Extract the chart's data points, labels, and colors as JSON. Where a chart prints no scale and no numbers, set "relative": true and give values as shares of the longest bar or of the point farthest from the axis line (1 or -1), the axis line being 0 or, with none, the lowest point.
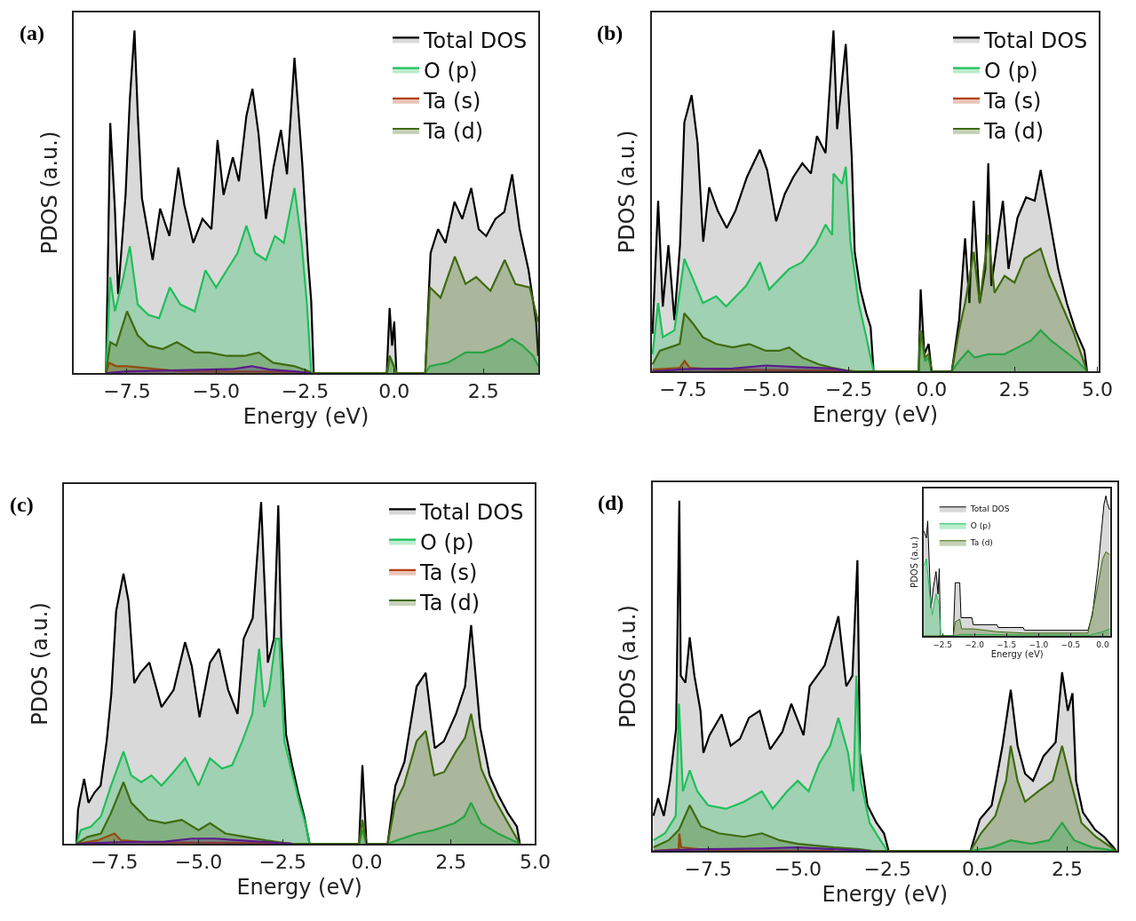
{
  "chart_data": [
    {
      "type": "area",
      "title": "(a)",
      "xlabel": "Energy (eV)",
      "ylabel": "PDOS (a.u.)",
      "relative": true,
      "tick_labels": "x",
      "legend": "top right",
      "xlim": [
        -9.0,
        4.05
      ],
      "xticks": [
        {
          "value": -7.5,
          "label": "−7.5"
        },
        {
          "value": -5.0,
          "label": "−5.0"
        },
        {
          "value": -2.5,
          "label": "−2.5"
        },
        {
          "value": 0.0,
          "label": "0.0"
        },
        {
          "value": 2.5,
          "label": "2.5"
        }
      ],
      "series": [
        {
          "name": "Total DOS",
          "color": "#000000",
          "x": [
            -8.09,
            -7.97,
            -7.84,
            -7.75,
            -7.54,
            -7.42,
            -7.29,
            -7.2,
            -7.08,
            -6.78,
            -6.57,
            -6.31,
            -6.06,
            -5.89,
            -5.64,
            -5.38,
            -5.13,
            -4.96,
            -4.79,
            -4.53,
            -4.36,
            -4.15,
            -3.98,
            -3.81,
            -3.6,
            -3.39,
            -3.18,
            -3.01,
            -2.8,
            -2.58,
            -2.42,
            -2.33,
            -2.26,
            -0.21,
            -0.13,
            -0.06,
            0.0,
            0.06,
            0.87,
            1.02,
            1.23,
            1.44,
            1.69,
            1.91,
            2.16,
            2.37,
            2.58,
            2.84,
            3.09,
            3.31,
            3.52,
            3.77,
            3.98,
            4.04
          ],
          "values": [
            0,
            0.73,
            0.48,
            0.23,
            0.52,
            0.8,
            1.0,
            0.76,
            0.51,
            0.33,
            0.48,
            0.4,
            0.6,
            0.49,
            0.38,
            0.45,
            0.42,
            0.68,
            0.52,
            0.63,
            0.56,
            0.75,
            0.83,
            0.7,
            0.45,
            0.6,
            0.71,
            0.58,
            0.92,
            0.61,
            0.33,
            0.21,
            0,
            0,
            0.19,
            0.08,
            0.15,
            0,
            0,
            0.35,
            0.42,
            0.38,
            0.5,
            0.45,
            0.54,
            0.42,
            0.4,
            0.45,
            0.47,
            0.58,
            0.42,
            0.3,
            0.15,
            0.05
          ]
        },
        {
          "name": "O (p)",
          "color": "#1fbf5a",
          "x": [
            -8.09,
            -7.97,
            -7.84,
            -7.6,
            -7.42,
            -7.2,
            -6.9,
            -6.6,
            -6.3,
            -6.0,
            -5.6,
            -5.3,
            -5.0,
            -4.7,
            -4.4,
            -4.15,
            -3.9,
            -3.6,
            -3.35,
            -3.1,
            -2.8,
            -2.6,
            -2.45,
            -2.33,
            -0.2,
            -0.13,
            0.0,
            0.06,
            0.87,
            1.0,
            1.5,
            2.0,
            2.5,
            3.0,
            3.3,
            3.6,
            3.9,
            4.04
          ],
          "values": [
            0,
            0.28,
            0.18,
            0.28,
            0.37,
            0.2,
            0.17,
            0.16,
            0.25,
            0.2,
            0.18,
            0.3,
            0.25,
            0.3,
            0.35,
            0.43,
            0.35,
            0.33,
            0.4,
            0.38,
            0.54,
            0.38,
            0.2,
            0,
            0,
            0.05,
            0.02,
            0,
            0,
            0.02,
            0.03,
            0.06,
            0.06,
            0.08,
            0.1,
            0.08,
            0.05,
            0.02
          ]
        },
        {
          "name": "Ta (s)",
          "color": "#b5400f",
          "x": [
            -8.09,
            -8.0,
            -7.8,
            -7.5,
            -6.0,
            -4.0,
            -2.5,
            -2.33
          ],
          "values": [
            0,
            0.03,
            0.02,
            0.02,
            0.005,
            0.004,
            0.003,
            0
          ]
        },
        {
          "name": "Ta (d)",
          "color": "#3f6b0f",
          "x": [
            -8.09,
            -7.97,
            -7.8,
            -7.5,
            -7.2,
            -6.9,
            -6.5,
            -6.1,
            -5.6,
            -5.2,
            -4.7,
            -4.2,
            -3.8,
            -3.4,
            -2.8,
            -2.4,
            -2.33,
            -0.2,
            -0.13,
            0.06,
            0.87,
            1.0,
            1.3,
            1.7,
            2.0,
            2.3,
            2.7,
            3.1,
            3.4,
            3.8,
            4.04
          ],
          "values": [
            0,
            0.09,
            0.08,
            0.18,
            0.11,
            0.08,
            0.07,
            0.09,
            0.06,
            0.06,
            0.05,
            0.05,
            0.06,
            0.03,
            0.02,
            0.005,
            0,
            0,
            0.05,
            0,
            0,
            0.25,
            0.22,
            0.34,
            0.26,
            0.28,
            0.24,
            0.33,
            0.26,
            0.25,
            0.15
          ]
        },
        {
          "color": "#5a1a8a",
          "x": [
            -8.09,
            -7.5,
            -6.0,
            -4.5,
            -4.0,
            -3.5,
            -2.8,
            -2.33
          ],
          "values": [
            0,
            0.005,
            0.008,
            0.012,
            0.02,
            0.01,
            0.005,
            0
          ]
        }
      ]
    },
    {
      "type": "area",
      "title": "(b)",
      "xlabel": "Energy (eV)",
      "ylabel": "PDOS (a.u.)",
      "relative": true,
      "tick_labels": "x",
      "legend": "top right",
      "xlim": [
        -8.45,
        5.05
      ],
      "xticks": [
        {
          "value": -7.5,
          "label": "−7.5"
        },
        {
          "value": -5.0,
          "label": "−5.0"
        },
        {
          "value": -2.5,
          "label": "−2.5"
        },
        {
          "value": 0.0,
          "label": "0.0"
        },
        {
          "value": 2.5,
          "label": "2.5"
        },
        {
          "value": 5.0,
          "label": "5.0"
        }
      ],
      "series": [
        {
          "name": "Total DOS",
          "color": "#000000",
          "x": [
            -8.42,
            -8.25,
            -8.11,
            -7.94,
            -7.76,
            -7.59,
            -7.46,
            -7.24,
            -7.06,
            -6.89,
            -6.71,
            -6.45,
            -6.18,
            -5.92,
            -5.57,
            -5.18,
            -4.96,
            -4.69,
            -4.43,
            -4.17,
            -3.9,
            -3.64,
            -3.46,
            -3.2,
            -2.96,
            -2.85,
            -2.59,
            -2.41,
            -2.32,
            -2.15,
            -1.97,
            -1.84,
            -1.75,
            -0.39,
            -0.33,
            -0.22,
            -0.09,
            0.0,
            0.61,
            0.83,
            1.01,
            1.14,
            1.27,
            1.45,
            1.62,
            1.71,
            1.8,
            2.15,
            2.32,
            2.59,
            2.85,
            3.11,
            3.29,
            3.55,
            3.82,
            4.08,
            4.34,
            4.61,
            4.69
          ],
          "values": [
            0.11,
            0.5,
            0.19,
            0.37,
            0.15,
            0.37,
            0.73,
            0.81,
            0.67,
            0.38,
            0.54,
            0.47,
            0.42,
            0.47,
            0.57,
            0.65,
            0.59,
            0.44,
            0.52,
            0.57,
            0.61,
            0.58,
            0.69,
            0.64,
            1.0,
            0.71,
            0.96,
            0.63,
            0.35,
            0.24,
            0.17,
            0.13,
            0,
            0,
            0.24,
            0.05,
            0.08,
            0,
            0,
            0.15,
            0.39,
            0.2,
            0.5,
            0.2,
            0.3,
            0.61,
            0.25,
            0.5,
            0.3,
            0.45,
            0.51,
            0.5,
            0.59,
            0.45,
            0.3,
            0.2,
            0.12,
            0.06,
            0
          ]
        },
        {
          "name": "O (p)",
          "color": "#1fbf5a",
          "x": [
            -8.42,
            -8.25,
            -8.11,
            -7.76,
            -7.46,
            -7.24,
            -6.9,
            -6.5,
            -6.2,
            -5.9,
            -5.6,
            -5.18,
            -4.9,
            -4.6,
            -4.3,
            -3.9,
            -3.5,
            -3.2,
            -3.0,
            -2.96,
            -2.7,
            -2.59,
            -2.45,
            -2.2,
            -1.97,
            -1.84,
            -1.75,
            -0.39,
            -0.33,
            -0.2,
            -0.09,
            0.0,
            0.61,
            0.83,
            1.1,
            1.3,
            1.7,
            2.2,
            2.6,
            3.0,
            3.29,
            3.6,
            4.0,
            4.4,
            4.69
          ],
          "values": [
            0.05,
            0.2,
            0.1,
            0.12,
            0.33,
            0.28,
            0.2,
            0.22,
            0.19,
            0.22,
            0.25,
            0.32,
            0.24,
            0.27,
            0.3,
            0.32,
            0.37,
            0.43,
            0.4,
            0.58,
            0.55,
            0.6,
            0.38,
            0.2,
            0.1,
            0.04,
            0,
            0,
            0.12,
            0.03,
            0.04,
            0,
            0,
            0.03,
            0.06,
            0.04,
            0.05,
            0.05,
            0.07,
            0.09,
            0.12,
            0.09,
            0.06,
            0.03,
            0
          ]
        },
        {
          "name": "Ta (s)",
          "color": "#b5400f",
          "x": [
            -8.42,
            -7.6,
            -7.45,
            -7.3,
            -6.5,
            -4.0,
            -2.5,
            -2.3
          ],
          "values": [
            0.005,
            0.01,
            0.03,
            0.01,
            0.005,
            0.003,
            0.002,
            0
          ]
        },
        {
          "name": "Ta (d)",
          "color": "#3f6b0f",
          "x": [
            -8.42,
            -8.2,
            -7.9,
            -7.6,
            -7.46,
            -7.2,
            -6.9,
            -6.5,
            -6.0,
            -5.5,
            -5.0,
            -4.6,
            -4.3,
            -3.9,
            -3.4,
            -3.0,
            -2.6,
            -2.4,
            -0.39,
            -0.33,
            -0.2,
            -0.09,
            0.0,
            0.61,
            0.83,
            1.01,
            1.27,
            1.45,
            1.71,
            1.9,
            2.2,
            2.5,
            2.8,
            3.29,
            3.55,
            3.9,
            4.3,
            4.69
          ],
          "values": [
            0.02,
            0.06,
            0.07,
            0.08,
            0.17,
            0.14,
            0.1,
            0.08,
            0.07,
            0.08,
            0.06,
            0.06,
            0.07,
            0.04,
            0.02,
            0.01,
            0.003,
            0,
            0,
            0.12,
            0.04,
            0.05,
            0,
            0,
            0.12,
            0.2,
            0.35,
            0.2,
            0.4,
            0.23,
            0.28,
            0.26,
            0.33,
            0.36,
            0.28,
            0.2,
            0.11,
            0
          ]
        },
        {
          "color": "#5a1a8a",
          "x": [
            -8.42,
            -7.5,
            -6.0,
            -5.0,
            -4.0,
            -3.0,
            -2.5
          ],
          "values": [
            0,
            0.006,
            0.008,
            0.017,
            0.012,
            0.008,
            0
          ]
        }
      ]
    },
    {
      "type": "area",
      "title": "(c)",
      "xlabel": "Energy (eV)",
      "ylabel": "PDOS (a.u.)",
      "relative": true,
      "tick_labels": "x",
      "legend": "top right",
      "xlim": [
        -9.0,
        5.0
      ],
      "xticks": [
        {
          "value": -7.5,
          "label": "−7.5"
        },
        {
          "value": -5.0,
          "label": "−5.0"
        },
        {
          "value": -2.5,
          "label": "−2.5"
        },
        {
          "value": 0.0,
          "label": "0.0"
        },
        {
          "value": 2.5,
          "label": "2.5"
        },
        {
          "value": 5.0,
          "label": "5.0"
        }
      ],
      "series": [
        {
          "name": "Total DOS",
          "color": "#000000",
          "x": [
            -8.63,
            -8.58,
            -8.4,
            -8.27,
            -8.09,
            -7.91,
            -7.73,
            -7.59,
            -7.45,
            -7.23,
            -7.08,
            -6.91,
            -6.73,
            -6.46,
            -6.1,
            -5.74,
            -5.4,
            -5.2,
            -4.97,
            -4.66,
            -4.39,
            -4.12,
            -3.84,
            -3.66,
            -3.39,
            -3.14,
            -2.94,
            -2.76,
            -2.63,
            -2.54,
            -2.4,
            -2.22,
            -2.04,
            -1.86,
            -1.7,
            -0.23,
            -0.13,
            -0.01,
            0.62,
            0.85,
            1.12,
            1.48,
            1.75,
            2.02,
            2.29,
            2.65,
            2.92,
            3.1,
            3.37,
            3.65,
            3.92,
            4.19,
            4.46,
            4.55
          ],
          "values": [
            0,
            0.1,
            0.19,
            0.12,
            0.15,
            0.17,
            0.3,
            0.44,
            0.68,
            0.79,
            0.71,
            0.47,
            0.5,
            0.53,
            0.4,
            0.45,
            0.59,
            0.52,
            0.37,
            0.53,
            0.57,
            0.45,
            0.38,
            0.6,
            0.66,
            1.0,
            0.53,
            0.6,
            0.99,
            0.6,
            0.32,
            0.23,
            0.15,
            0.08,
            0,
            0,
            0.23,
            0,
            0,
            0.17,
            0.24,
            0.46,
            0.5,
            0.28,
            0.3,
            0.38,
            0.46,
            0.64,
            0.34,
            0.2,
            0.14,
            0.09,
            0.05,
            0
          ]
        },
        {
          "name": "O (p)",
          "color": "#1fbf5a",
          "x": [
            -8.63,
            -8.5,
            -8.2,
            -7.9,
            -7.6,
            -7.23,
            -7.0,
            -6.7,
            -6.4,
            -6.1,
            -5.74,
            -5.4,
            -5.0,
            -4.66,
            -4.3,
            -4.0,
            -3.7,
            -3.4,
            -3.2,
            -3.05,
            -2.9,
            -2.7,
            -2.6,
            -2.45,
            -2.2,
            -2.0,
            -1.8,
            -1.7,
            -0.23,
            -0.13,
            -0.01,
            0.62,
            0.9,
            1.5,
            2.0,
            2.6,
            2.9,
            3.1,
            3.4,
            3.9,
            4.55
          ],
          "values": [
            0,
            0.04,
            0.05,
            0.08,
            0.17,
            0.27,
            0.2,
            0.18,
            0.2,
            0.17,
            0.21,
            0.25,
            0.17,
            0.25,
            0.22,
            0.23,
            0.3,
            0.38,
            0.57,
            0.4,
            0.45,
            0.6,
            0.6,
            0.3,
            0.2,
            0.12,
            0.05,
            0,
            0,
            0.04,
            0,
            0,
            0.01,
            0.03,
            0.04,
            0.06,
            0.08,
            0.12,
            0.06,
            0.03,
            0
          ]
        },
        {
          "name": "Ta (s)",
          "color": "#b5400f",
          "x": [
            -8.63,
            -8.0,
            -7.5,
            -7.3,
            -6.5,
            -4.0,
            -2.5,
            -2.2
          ],
          "values": [
            0,
            0.01,
            0.03,
            0.01,
            0.004,
            0.003,
            0.002,
            0
          ]
        },
        {
          "name": "Ta (d)",
          "color": "#3f6b0f",
          "x": [
            -8.63,
            -8.3,
            -7.9,
            -7.6,
            -7.23,
            -7.0,
            -6.5,
            -6.0,
            -5.5,
            -5.0,
            -4.66,
            -4.2,
            -3.6,
            -3.0,
            -2.5,
            -2.2,
            -0.23,
            -0.13,
            -0.01,
            0.62,
            0.85,
            1.1,
            1.48,
            1.75,
            2.0,
            2.3,
            2.65,
            2.92,
            3.1,
            3.4,
            3.8,
            4.2,
            4.55
          ],
          "values": [
            0,
            0.02,
            0.03,
            0.09,
            0.18,
            0.12,
            0.07,
            0.06,
            0.07,
            0.04,
            0.06,
            0.03,
            0.02,
            0.01,
            0.003,
            0,
            0,
            0.07,
            0,
            0,
            0.12,
            0.17,
            0.3,
            0.33,
            0.2,
            0.21,
            0.27,
            0.31,
            0.38,
            0.22,
            0.13,
            0.06,
            0
          ]
        },
        {
          "color": "#5a1a8a",
          "x": [
            -8.63,
            -7.5,
            -6.0,
            -5.2,
            -4.5,
            -3.5,
            -2.5,
            -2.2
          ],
          "values": [
            0,
            0.004,
            0.006,
            0.015,
            0.015,
            0.008,
            0.002,
            0
          ]
        }
      ]
    },
    {
      "type": "area",
      "title": "(d)",
      "xlabel": "Energy (eV)",
      "ylabel": "PDOS (a.u.)",
      "relative": true,
      "tick_labels": "x",
      "xlim": [
        -9.05,
        3.9
      ],
      "xticks": [
        {
          "value": -7.5,
          "label": "−7.5"
        },
        {
          "value": -5.0,
          "label": "−5.0"
        },
        {
          "value": -2.5,
          "label": "−2.5"
        },
        {
          "value": 0.0,
          "label": "0.0"
        },
        {
          "value": 2.5,
          "label": "2.5"
        }
      ],
      "series": [
        {
          "color": "#000000",
          "x": [
            -9.02,
            -8.89,
            -8.73,
            -8.56,
            -8.39,
            -8.3,
            -8.26,
            -8.13,
            -8.01,
            -7.88,
            -7.71,
            -7.63,
            -7.46,
            -7.12,
            -6.87,
            -6.61,
            -6.36,
            -6.06,
            -5.77,
            -5.43,
            -5.18,
            -4.84,
            -4.67,
            -4.25,
            -3.87,
            -3.65,
            -3.48,
            -3.34,
            -3.27,
            -3.06,
            -2.81,
            -2.6,
            -2.47,
            -0.19,
            0.07,
            0.4,
            0.7,
            0.93,
            1.12,
            1.33,
            1.55,
            1.84,
            2.18,
            2.36,
            2.52,
            2.65,
            2.75,
            2.94,
            3.28,
            3.53,
            3.79,
            3.87
          ],
          "values": [
            0.1,
            0.15,
            0.1,
            0.2,
            0.35,
            1.0,
            0.5,
            0.48,
            0.61,
            0.5,
            0.4,
            0.28,
            0.33,
            0.39,
            0.3,
            0.32,
            0.38,
            0.4,
            0.29,
            0.34,
            0.42,
            0.33,
            0.47,
            0.53,
            0.67,
            0.47,
            0.5,
            0.83,
            0.28,
            0.13,
            0.08,
            0.05,
            0,
            0,
            0.09,
            0.13,
            0.3,
            0.46,
            0.3,
            0.22,
            0.2,
            0.27,
            0.31,
            0.51,
            0.4,
            0.45,
            0.2,
            0.11,
            0.06,
            0.04,
            0.01,
            0
          ]
        },
        {
          "color": "#1fbf5a",
          "x": [
            -9.02,
            -8.7,
            -8.4,
            -8.31,
            -8.2,
            -8.01,
            -7.8,
            -7.5,
            -7.0,
            -6.5,
            -6.0,
            -5.7,
            -5.3,
            -5.0,
            -4.7,
            -4.4,
            -4.1,
            -3.87,
            -3.6,
            -3.45,
            -3.37,
            -3.25,
            -3.0,
            -2.7,
            -2.5,
            -0.19,
            0.4,
            0.93,
            1.5,
            2.0,
            2.36,
            2.7,
            3.2,
            3.87
          ],
          "values": [
            0.03,
            0.05,
            0.1,
            0.42,
            0.17,
            0.23,
            0.17,
            0.13,
            0.12,
            0.14,
            0.17,
            0.12,
            0.17,
            0.2,
            0.17,
            0.25,
            0.3,
            0.38,
            0.28,
            0.17,
            0.5,
            0.2,
            0.08,
            0.03,
            0,
            0,
            0.01,
            0.03,
            0.02,
            0.03,
            0.08,
            0.03,
            0.01,
            0
          ]
        },
        {
          "color": "#b5400f",
          "x": [
            -9.02,
            -8.32,
            -8.3,
            -8.25,
            -7.5,
            -6.0,
            -4.0
          ],
          "values": [
            0,
            0.005,
            0.05,
            0.01,
            0.002,
            0.001,
            0
          ]
        },
        {
          "color": "#3f6b0f",
          "x": [
            -9.02,
            -8.6,
            -8.31,
            -8.01,
            -7.7,
            -7.2,
            -6.5,
            -6.0,
            -5.5,
            -5.0,
            -4.5,
            -4.0,
            -3.3,
            -2.9,
            -0.19,
            0.1,
            0.5,
            0.8,
            0.93,
            1.12,
            1.33,
            1.7,
            2.1,
            2.36,
            2.6,
            2.9,
            3.3,
            3.87
          ],
          "values": [
            0.01,
            0.03,
            0.06,
            0.13,
            0.07,
            0.05,
            0.04,
            0.05,
            0.03,
            0.02,
            0.015,
            0.01,
            0.005,
            0,
            0,
            0.05,
            0.1,
            0.2,
            0.3,
            0.2,
            0.14,
            0.17,
            0.2,
            0.3,
            0.2,
            0.08,
            0.04,
            0
          ]
        },
        {
          "color": "#5a1a8a",
          "x": [
            -9.02,
            -7.5,
            -6.0,
            -5.0,
            -4.0,
            -3.0
          ],
          "values": [
            0,
            0.005,
            0.007,
            0.01,
            0.005,
            0
          ]
        }
      ]
    },
    {
      "type": "area",
      "xlabel": "Energy (eV)",
      "ylabel": "PDOS (a.u.)",
      "relative": true,
      "tick_labels": "x",
      "legend": "top left",
      "xlim": [
        -2.79,
        0.12
      ],
      "xticks": [
        {
          "value": -2.5,
          "label": "−2.5"
        },
        {
          "value": -2.0,
          "label": "−2.0"
        },
        {
          "value": -1.5,
          "label": "−1.5"
        },
        {
          "value": -1.0,
          "label": "−1.0"
        },
        {
          "value": -0.5,
          "label": "−0.5"
        },
        {
          "value": 0.0,
          "label": "0.0"
        }
      ],
      "series": [
        {
          "name": "Total DOS",
          "color": "#000000",
          "x": [
            -2.79,
            -2.75,
            -2.73,
            -2.68,
            -2.64,
            -2.6,
            -2.57,
            -2.55,
            -2.53,
            -2.33,
            -2.3,
            -2.23,
            -2.21,
            -2.04,
            -2.02,
            -1.65,
            -1.63,
            -1.24,
            -1.22,
            -0.23,
            -0.16,
            -0.07,
            0.02,
            0.05,
            0.07,
            0.11
          ],
          "values": [
            0.75,
            0.7,
            0.82,
            0.2,
            0.35,
            0.46,
            0.3,
            0.48,
            0,
            0,
            0.38,
            0.38,
            0.13,
            0.13,
            0.08,
            0.08,
            0.06,
            0.06,
            0.04,
            0.04,
            0.15,
            0.5,
            0.94,
            1.0,
            0.95,
            0.9
          ]
        },
        {
          "name": "O (p)",
          "color": "#1fbf5a",
          "x": [
            -2.79,
            -2.75,
            -2.7,
            -2.66,
            -2.6,
            -2.55,
            -2.53,
            -2.33,
            -2.2,
            -0.2,
            0.0,
            0.11
          ],
          "values": [
            0.5,
            0.55,
            0.3,
            0.15,
            0.3,
            0.22,
            0,
            0,
            0.01,
            0.005,
            0.03,
            0.05
          ]
        },
        {
          "name": "Ta (d)",
          "color": "#3f6b0f",
          "x": [
            -2.79,
            -2.53,
            -2.33,
            -2.3,
            -2.23,
            -2.2,
            -2.02,
            -1.65,
            -1.22,
            -0.23,
            -0.1,
            0.0,
            0.05,
            0.11
          ],
          "values": [
            0,
            0,
            0,
            0.1,
            0.12,
            0.05,
            0.05,
            0.03,
            0.02,
            0.02,
            0.3,
            0.55,
            0.6,
            0.58
          ]
        }
      ]
    }
  ]
}
